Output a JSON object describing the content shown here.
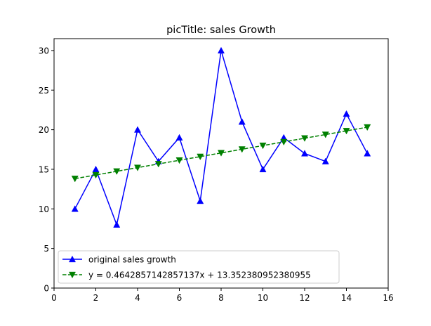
{
  "chart_data": {
    "type": "line",
    "title": "picTitle: sales Growth",
    "xlabel": "",
    "ylabel": "",
    "xlim": [
      0,
      16
    ],
    "ylim": [
      0,
      31.5
    ],
    "xticks": [
      0,
      2,
      4,
      6,
      8,
      10,
      12,
      14,
      16
    ],
    "yticks": [
      0,
      5,
      10,
      15,
      20,
      25,
      30
    ],
    "x": [
      1,
      2,
      3,
      4,
      5,
      6,
      7,
      8,
      9,
      10,
      11,
      12,
      13,
      14,
      15
    ],
    "grid": false,
    "legend_position": "lower-left",
    "series": [
      {
        "name": "original sales growth",
        "values": [
          10,
          15,
          8,
          20,
          16,
          19,
          11,
          30,
          21,
          15,
          19,
          17,
          16,
          22,
          17
        ],
        "color": "#0000ff",
        "line_style": "solid",
        "marker": "triangle-up"
      },
      {
        "name": "y = 0.4642857142857137x + 13.352380952380955",
        "slope": 0.4642857142857137,
        "intercept": 13.352380952380955,
        "color": "#008000",
        "line_style": "dashed",
        "marker": "triangle-down"
      }
    ]
  }
}
